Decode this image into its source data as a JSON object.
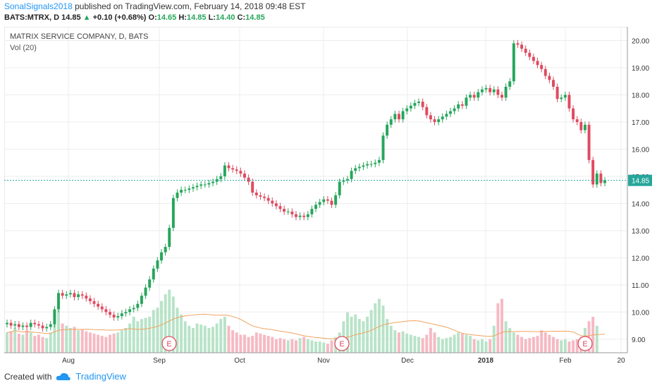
{
  "header": {
    "publisher": "SonalSignals2018",
    "published_text": "published on TradingView.com, February 14, 2018 09:48 EST",
    "symbol": "BATS:MTRX, D",
    "last": "14.85",
    "change": "+0.10 (+0.68%)",
    "o_label": "O:",
    "o_value": "14.65",
    "h_label": "H:",
    "h_value": "14.85",
    "l_label": "L:",
    "l_value": "14.40",
    "c_label": "C:",
    "c_value": "14.85"
  },
  "legend": {
    "title": "MATRIX SERVICE COMPANY, D, BATS",
    "volume": "Vol (20)"
  },
  "footer": {
    "created_with": "Created with",
    "brand": "TradingView"
  },
  "colors": {
    "up": "#26a65b",
    "down": "#e04a5f",
    "up_vol": "#b8e3c8",
    "down_vol": "#f6b9c3",
    "ma": "#f0a35e",
    "price_line": "#26a69a"
  },
  "chart_data": {
    "type": "candlestick",
    "ylim": [
      8.5,
      20.3
    ],
    "y_ticks": [
      "9.00",
      "10.00",
      "11.00",
      "12.00",
      "13.00",
      "14.00",
      "15.00",
      "16.00",
      "17.00",
      "18.00",
      "19.00",
      "20.00"
    ],
    "x_ticks": [
      "Aug",
      "Sep",
      "Oct",
      "Nov",
      "Dec",
      "2018",
      "Feb",
      "20"
    ],
    "current_price": "14.85",
    "earnings_markers": [
      "E",
      "E",
      "E"
    ],
    "closes": [
      9.6,
      9.5,
      9.55,
      9.45,
      9.5,
      9.45,
      9.6,
      9.55,
      9.5,
      9.4,
      9.45,
      9.55,
      10.1,
      10.7,
      10.6,
      10.65,
      10.7,
      10.55,
      10.65,
      10.6,
      10.5,
      10.4,
      10.3,
      10.2,
      10.1,
      10.0,
      9.9,
      9.8,
      9.85,
      9.95,
      10.0,
      10.1,
      10.15,
      10.3,
      10.6,
      10.9,
      11.2,
      11.6,
      11.9,
      12.2,
      12.4,
      13.1,
      14.2,
      14.4,
      14.5,
      14.5,
      14.55,
      14.6,
      14.65,
      14.7,
      14.7,
      14.75,
      14.8,
      14.9,
      15.0,
      15.4,
      15.3,
      15.25,
      15.2,
      15.1,
      14.95,
      14.8,
      14.4,
      14.3,
      14.25,
      14.2,
      14.1,
      14.0,
      13.9,
      13.8,
      13.7,
      13.7,
      13.6,
      13.5,
      13.55,
      13.5,
      13.6,
      13.8,
      13.95,
      14.05,
      14.15,
      14.1,
      13.95,
      14.3,
      14.8,
      14.85,
      14.9,
      15.2,
      15.3,
      15.35,
      15.4,
      15.45,
      15.45,
      15.5,
      15.6,
      16.5,
      16.9,
      17.1,
      17.3,
      17.1,
      17.4,
      17.5,
      17.6,
      17.7,
      17.75,
      17.55,
      17.25,
      17.1,
      17.0,
      17.1,
      17.2,
      17.3,
      17.4,
      17.5,
      17.65,
      17.6,
      17.9,
      18.0,
      17.9,
      18.1,
      18.2,
      18.25,
      18.1,
      18.2,
      18.0,
      17.9,
      18.3,
      18.5,
      19.9,
      19.85,
      19.7,
      19.55,
      19.4,
      19.25,
      19.1,
      18.95,
      18.7,
      18.55,
      18.3,
      17.85,
      17.9,
      18.0,
      17.5,
      17.1,
      17.0,
      16.7,
      16.9,
      15.6,
      14.7,
      15.1,
      14.75,
      14.85
    ],
    "volumes": [
      0.9,
      0.95,
      1.1,
      0.85,
      0.8,
      1.0,
      0.9,
      0.75,
      0.8,
      0.7,
      0.65,
      0.9,
      1.8,
      1.9,
      1.3,
      1.2,
      1.1,
      1.15,
      1.0,
      1.05,
      0.95,
      0.9,
      0.85,
      0.8,
      0.75,
      0.7,
      0.8,
      0.85,
      0.9,
      1.0,
      1.1,
      1.3,
      1.6,
      1.4,
      1.5,
      1.55,
      1.6,
      1.9,
      2.0,
      2.3,
      2.6,
      2.8,
      2.5,
      2.0,
      1.7,
      1.4,
      1.2,
      1.1,
      1.3,
      1.25,
      1.2,
      1.1,
      1.15,
      1.3,
      1.5,
      1.6,
      1.2,
      1.0,
      0.9,
      0.8,
      0.8,
      0.7,
      0.75,
      0.9,
      0.85,
      0.8,
      0.75,
      0.7,
      0.6,
      0.65,
      0.6,
      0.55,
      0.6,
      0.55,
      0.65,
      0.7,
      0.6,
      0.55,
      0.5,
      0.5,
      0.45,
      0.4,
      0.55,
      0.7,
      0.9,
      1.4,
      1.8,
      1.6,
      1.7,
      1.5,
      1.4,
      1.6,
      1.9,
      2.2,
      2.4,
      2.1,
      1.5,
      1.2,
      1.0,
      0.9,
      0.95,
      0.85,
      0.8,
      0.75,
      0.7,
      0.65,
      0.8,
      1.1,
      0.9,
      0.7,
      0.6,
      0.65,
      0.7,
      0.8,
      0.9,
      0.85,
      0.8,
      0.75,
      0.6,
      0.55,
      0.6,
      0.5,
      0.6,
      1.2,
      2.2,
      2.4,
      1.4,
      1.1,
      0.9,
      0.8,
      0.7,
      0.6,
      0.65,
      0.7,
      0.75,
      1.0,
      0.9,
      0.8,
      0.7,
      0.6,
      0.55,
      0.6,
      0.5,
      0.55,
      0.6,
      0.7,
      1.1,
      1.4,
      1.6,
      1.2
    ]
  }
}
